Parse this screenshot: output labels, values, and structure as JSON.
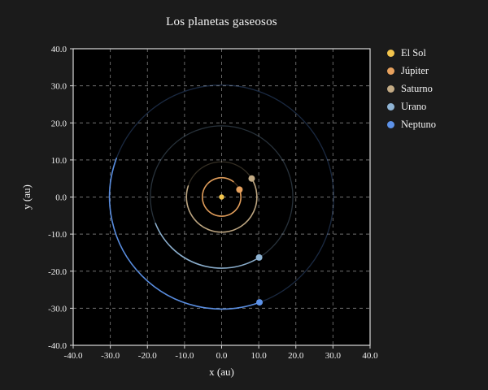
{
  "chart_data": {
    "type": "scatter",
    "title": "Los planetas gaseosos",
    "xlabel": "x (au)",
    "ylabel": "y (au)",
    "xlim": [
      -40,
      40
    ],
    "ylim": [
      -40,
      40
    ],
    "xticks": [
      -40,
      -30,
      -20,
      -10,
      0,
      10,
      20,
      30,
      40
    ],
    "yticks": [
      -40,
      -30,
      -20,
      -10,
      0,
      10,
      20,
      30,
      40
    ],
    "grid": true,
    "grid_style": "dashed",
    "plot_background": "#000000",
    "figure_background": "#1b1b1b",
    "legend_position": "outside-upper-right",
    "series": [
      {
        "name": "El Sol",
        "color": "#f2c44d",
        "position": [
          0,
          0
        ],
        "orbit_radius": 0,
        "trail_deg": 0
      },
      {
        "name": "Júpiter",
        "color": "#e8a25e",
        "position": [
          4.8,
          2.0
        ],
        "orbit_radius": 5.2,
        "trail_deg": 330
      },
      {
        "name": "Saturno",
        "color": "#c3ab85",
        "position": [
          8.1,
          5.0
        ],
        "orbit_radius": 9.5,
        "trail_deg": 230
      },
      {
        "name": "Urano",
        "color": "#8fb4d4",
        "position": [
          10.1,
          -16.3
        ],
        "orbit_radius": 19.2,
        "trail_deg": 100
      },
      {
        "name": "Neptuno",
        "color": "#5d92e8",
        "position": [
          10.2,
          -28.4
        ],
        "orbit_radius": 30.2,
        "trail_deg": 130
      }
    ]
  }
}
